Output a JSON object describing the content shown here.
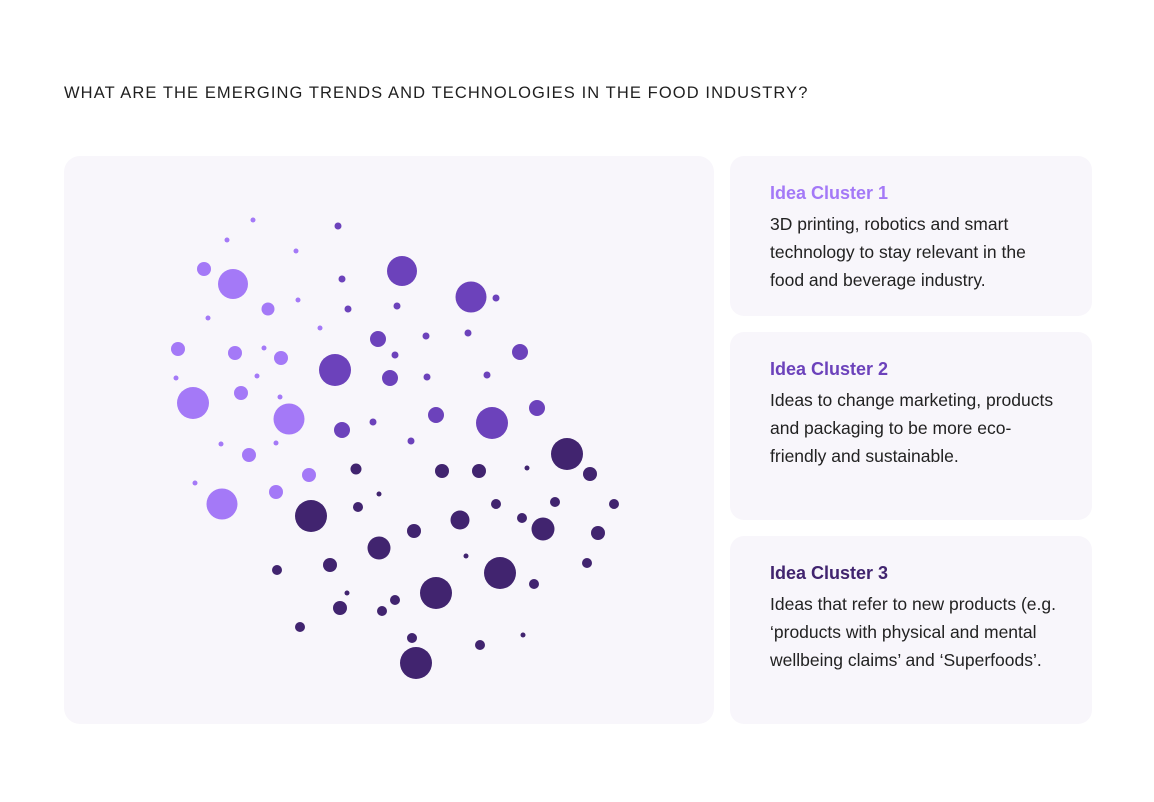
{
  "title": "WHAT ARE THE EMERGING TRENDS AND TECHNOLOGIES IN THE FOOD INDUSTRY?",
  "colors": {
    "cluster1": "#a479f7",
    "cluster2": "#6c42bb",
    "cluster3": "#41246f",
    "panel_bg": "#f8f6fb",
    "page_bg": "#ffffff"
  },
  "clusters": [
    {
      "title": "Idea Cluster 1",
      "text": "3D printing, robotics and smart technology to stay relevant in the food and beverage industry."
    },
    {
      "title": "Idea Cluster 2",
      "text": "Ideas to change marketing, products and packaging to be more eco-friendly and sustainable."
    },
    {
      "title": "Idea Cluster 3",
      "text": "Ideas that refer to new products (e.g. ‘products with physical and mental wellbeing claims’ and ‘Superfoods’."
    }
  ]
}
